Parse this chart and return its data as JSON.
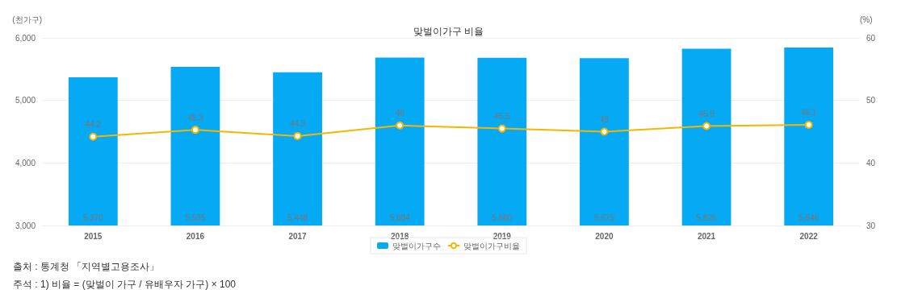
{
  "chart_data": {
    "type": "bar",
    "title": "맞벌이가구 비율",
    "ylabel": "(천가구)",
    "y2label": "(%)",
    "categories": [
      "2015",
      "2016",
      "2017",
      "2018",
      "2019",
      "2020",
      "2021",
      "2022"
    ],
    "series": [
      {
        "name": "맞벌이가구수",
        "color": "#05a9f4",
        "values": [
          5370,
          5535,
          5448,
          5684,
          5680,
          5675,
          5826,
          5846
        ],
        "value_labels": [
          "5,370",
          "5,535",
          "5,448",
          "5,684",
          "5,680",
          "5,675",
          "5,826",
          "5,846"
        ]
      },
      {
        "name": "맞벌이가구비율",
        "type": "line",
        "axis": "y2",
        "color": "#f7b500",
        "marker": "circle",
        "values": [
          44.2,
          45.3,
          44.3,
          46,
          45.5,
          45,
          45.9,
          46.1
        ],
        "value_labels": [
          "44.2",
          "45.3",
          "44.3",
          "46",
          "45.5",
          "45",
          "45.9",
          "46.1"
        ]
      }
    ],
    "ylim": [
      3000,
      6000
    ],
    "yticks": [
      {
        "value": 3000,
        "label": "3,000"
      },
      {
        "value": 4000,
        "label": "4,000"
      },
      {
        "value": 5000,
        "label": "5,000"
      },
      {
        "value": 6000,
        "label": "6,000"
      }
    ],
    "y2lim": [
      30,
      60
    ],
    "y2ticks": [
      30,
      40,
      50,
      60
    ],
    "grid": "y",
    "legend": "bottom",
    "annotations": [
      "출처 : 통계청 「지역별고용조사」",
      "주석 : 1) 비율 = (맞벌이 가구 / 유배우자 가구) × 100"
    ]
  }
}
